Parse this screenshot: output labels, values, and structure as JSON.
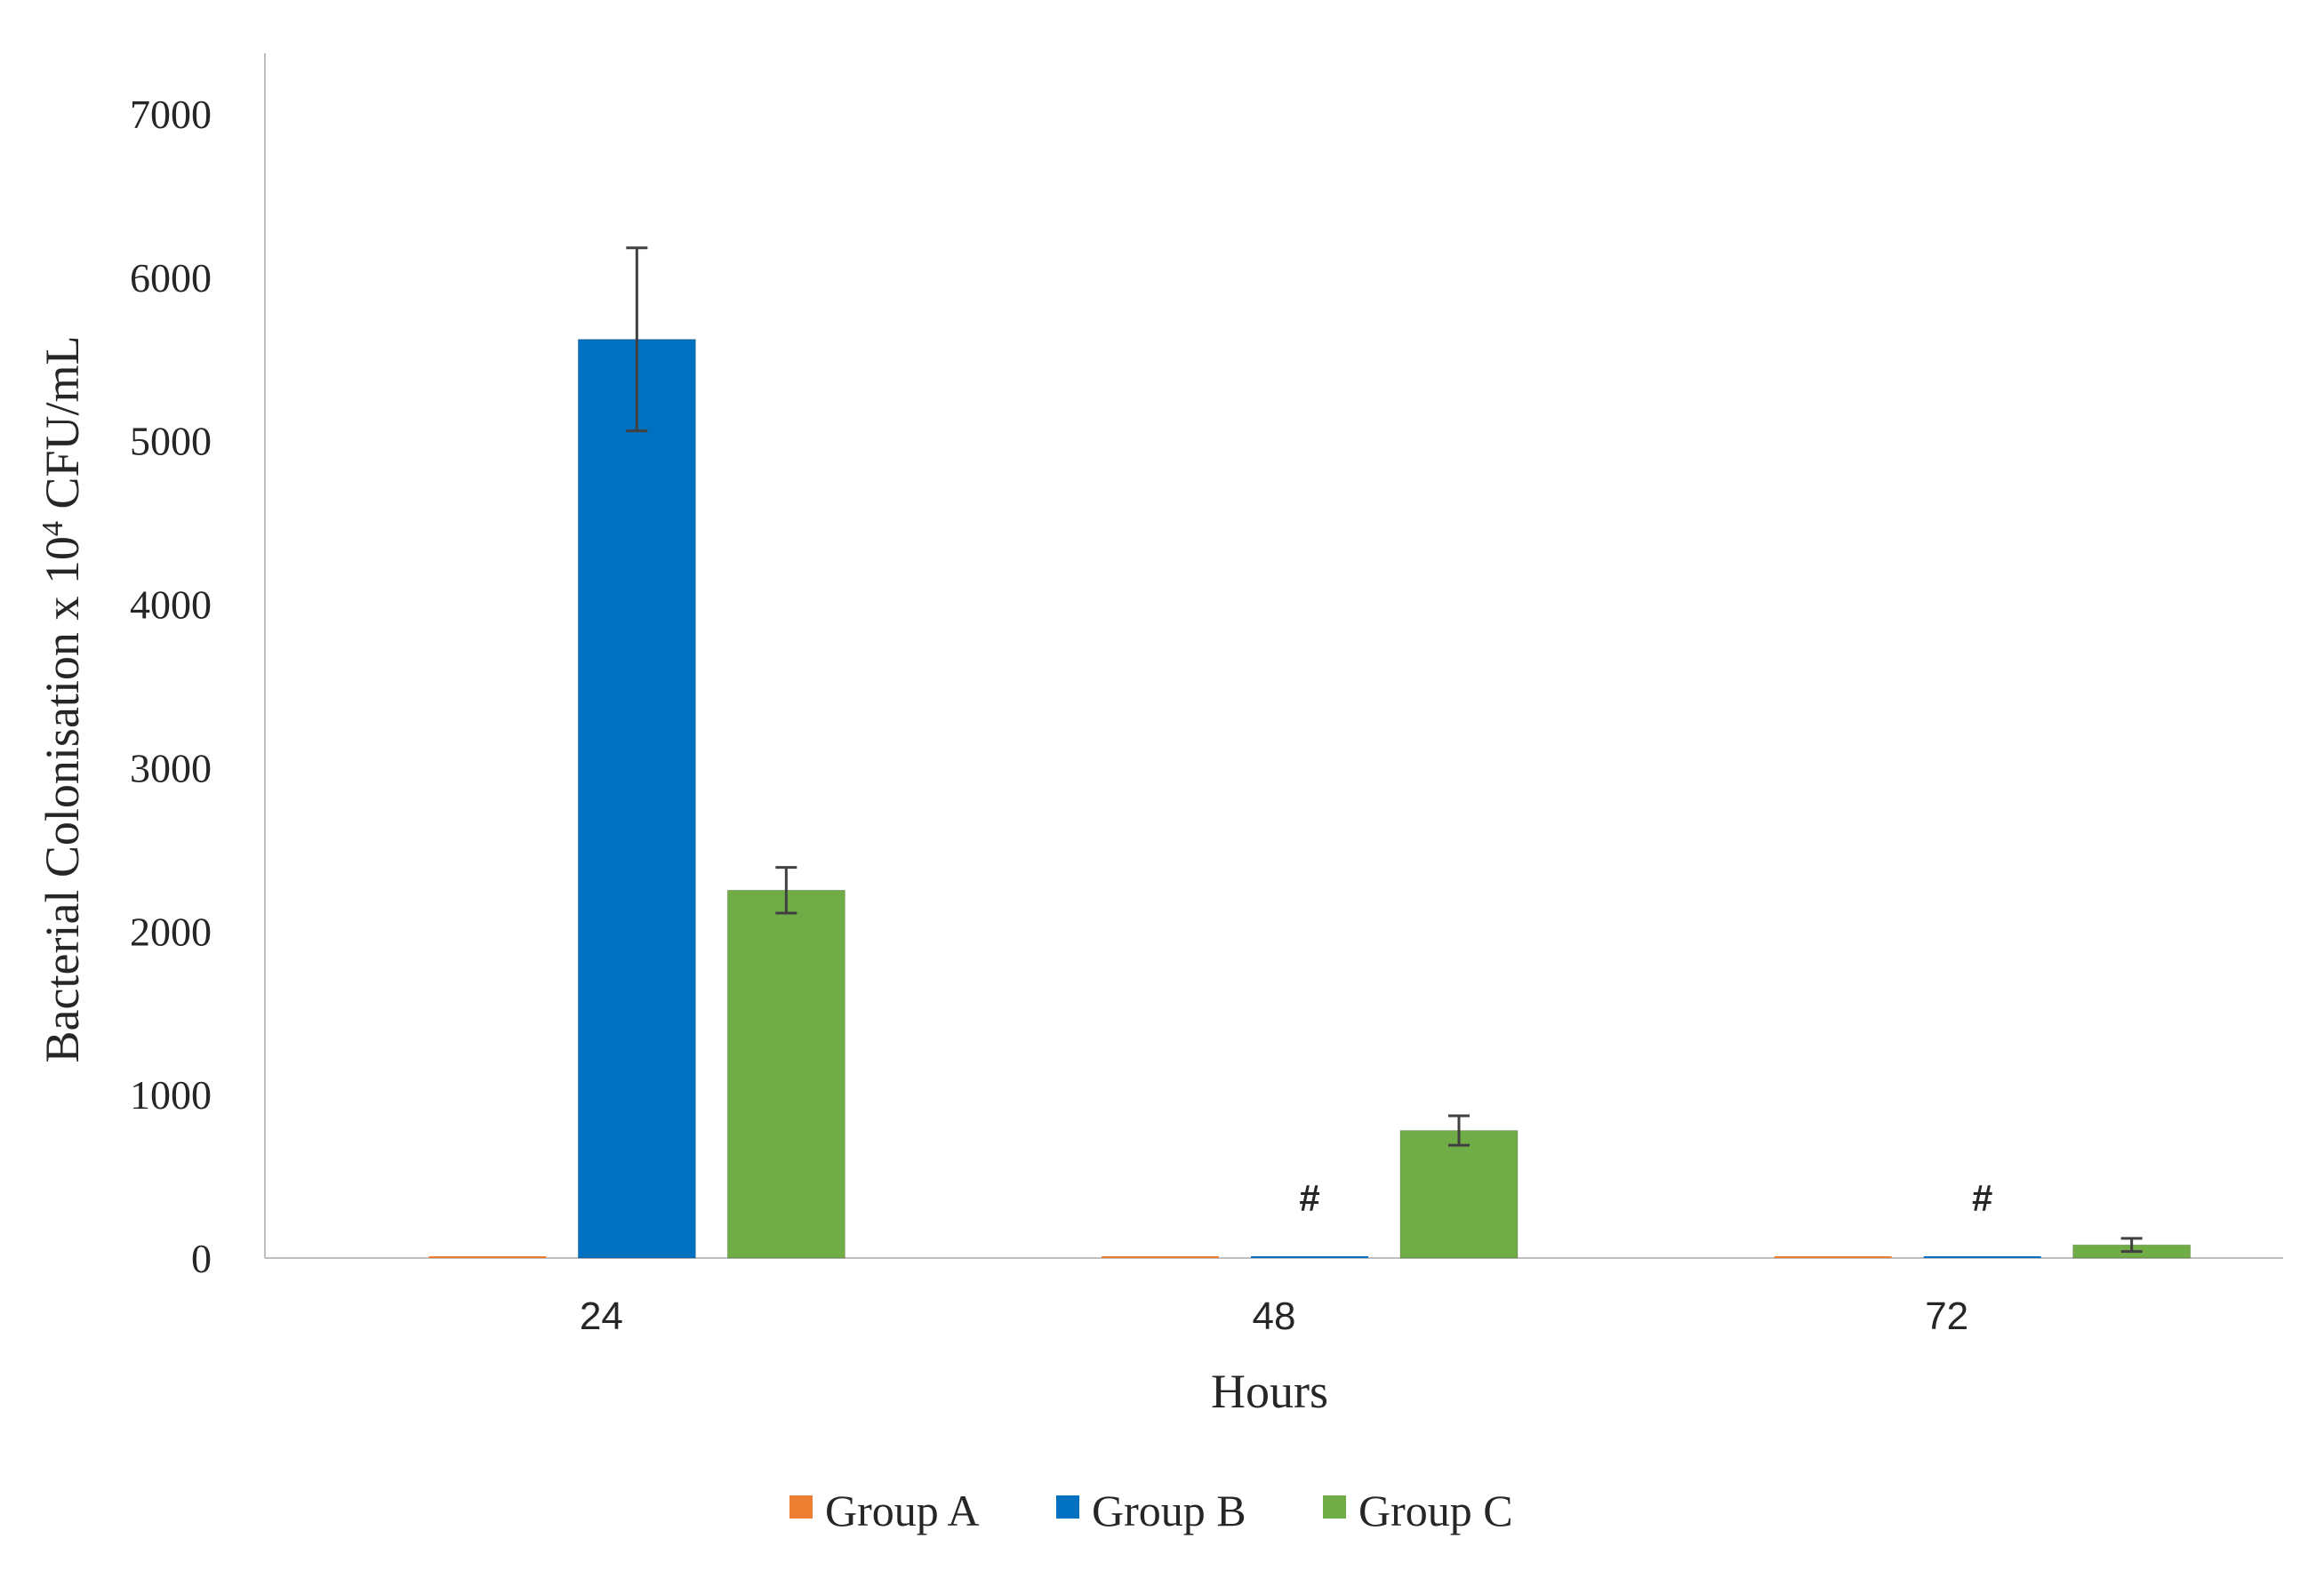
{
  "chart_data": {
    "type": "bar",
    "categories": [
      "24",
      "48",
      "72"
    ],
    "series": [
      {
        "name": "Group A",
        "color": "#ed7d31",
        "values": [
          0,
          0,
          0
        ],
        "errors": [
          0,
          0,
          0
        ]
      },
      {
        "name": "Group B",
        "color": "#0070c0",
        "values": [
          5620,
          0,
          0
        ],
        "errors": [
          560,
          0,
          0
        ]
      },
      {
        "name": "Group C",
        "color": "#70ad47",
        "values": [
          2250,
          780,
          80
        ],
        "errors": [
          140,
          90,
          40
        ]
      }
    ],
    "xlabel": "Hours",
    "ylabel_prefix": "Bacterial Colonisation x 10",
    "ylabel_superscript": "4",
    "ylabel_suffix": " CFU/mL",
    "ylim": [
      0,
      7000
    ],
    "yticks": [
      0,
      1000,
      2000,
      3000,
      4000,
      5000,
      6000,
      7000
    ],
    "grid": false,
    "legend_position": "bottom",
    "annotations": [
      {
        "text": "#",
        "category": "48",
        "series": "Group B"
      },
      {
        "text": "#",
        "category": "72",
        "series": "Group B"
      }
    ]
  }
}
